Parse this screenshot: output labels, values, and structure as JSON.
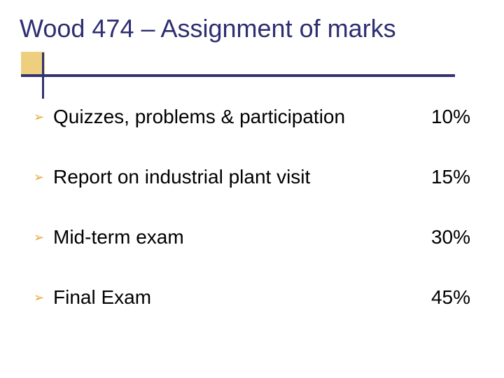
{
  "slide": {
    "title": "Wood 474 – Assignment of marks",
    "title_color": "#2e2e72",
    "title_fontsize": 36,
    "accent_block_color": "#eecf80",
    "rule_color": "#333370",
    "background_color": "#ffffff",
    "bullet_glyph": "➢",
    "bullet_color": "#e6a93c",
    "body_fontsize": 28,
    "body_color": "#000000",
    "items": [
      {
        "label": "Quizzes, problems & participation",
        "value": "10%"
      },
      {
        "label": "Report on industrial plant visit",
        "value": "15%"
      },
      {
        "label": "Mid-term exam",
        "value": "30%"
      },
      {
        "label": "Final Exam",
        "value": "45%"
      }
    ]
  }
}
